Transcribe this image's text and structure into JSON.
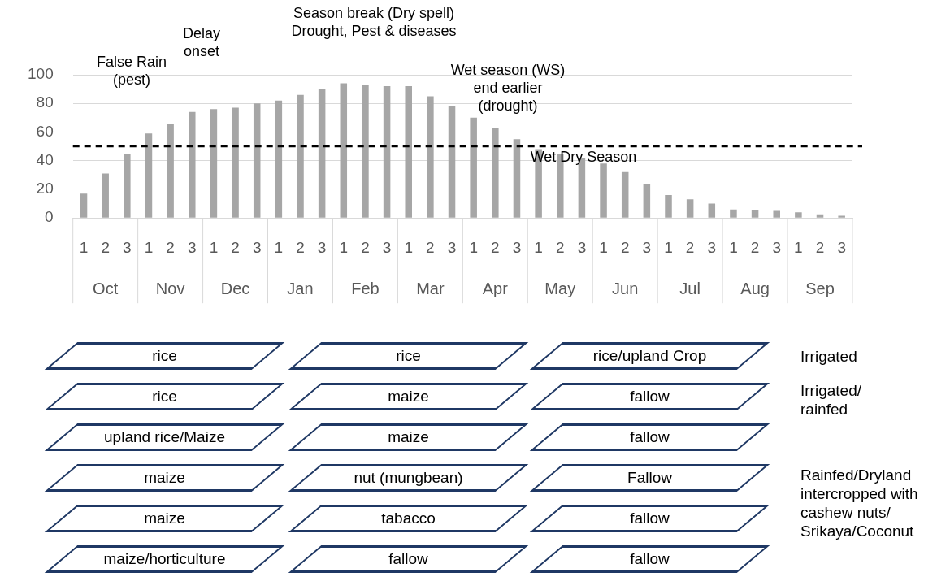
{
  "chart_data": [
    {
      "type": "bar",
      "categories": [
        "1",
        "2",
        "3",
        "1",
        "2",
        "3",
        "1",
        "2",
        "3",
        "1",
        "2",
        "3",
        "1",
        "2",
        "3",
        "1",
        "2",
        "3",
        "1",
        "2",
        "3",
        "1",
        "2",
        "3",
        "1",
        "2",
        "3",
        "1",
        "2",
        "3",
        "1",
        "2",
        "3",
        "1",
        "2",
        "3"
      ],
      "values": [
        17,
        31,
        45,
        59,
        66,
        74,
        76,
        77,
        80,
        82,
        86,
        90,
        94,
        93,
        92,
        92,
        85,
        78,
        70,
        63,
        55,
        48,
        45,
        42,
        38,
        32,
        24,
        16,
        13,
        10,
        6,
        5.5,
        5,
        4,
        2.5,
        1.5
      ],
      "color": "#a6a6a6",
      "ylim": [
        0,
        100
      ],
      "yticks": [
        0,
        20,
        40,
        60,
        80,
        100
      ],
      "grid": "y",
      "legend": false,
      "ref_lines": [
        {
          "axis": "y",
          "value": 50,
          "color": "#000000",
          "line_style": "dashed"
        }
      ],
      "annotations": [
        "False Rain\n(pest)",
        "Delay\nonset",
        "Season break (Dry spell)\nDrought, Pest & diseases",
        "Wet season (WS)\nend earlier\n(drought)",
        "Wet Dry Season",
        "Oct",
        "Nov",
        "Dec",
        "Jan",
        "Feb",
        "Mar",
        "Apr",
        "May",
        "Jun",
        "Jul",
        "Aug",
        "Sep"
      ]
    },
    {
      "type": "other",
      "annotations": [
        "rice",
        "rice",
        "rice/upland Crop",
        "rice",
        "maize",
        "fallow",
        "upland rice/Maize",
        "maize",
        "fallow",
        "maize",
        "nut (mungbean)",
        "Fallow",
        "maize",
        "tabacco",
        "fallow",
        "maize/horticulture",
        "fallow",
        "fallow",
        "Irrigated",
        "Irrigated/\nrainfed",
        "Rainfed/Dryland\nintercropped with\ncashew nuts/\nSrikaya/Coconut"
      ]
    }
  ]
}
